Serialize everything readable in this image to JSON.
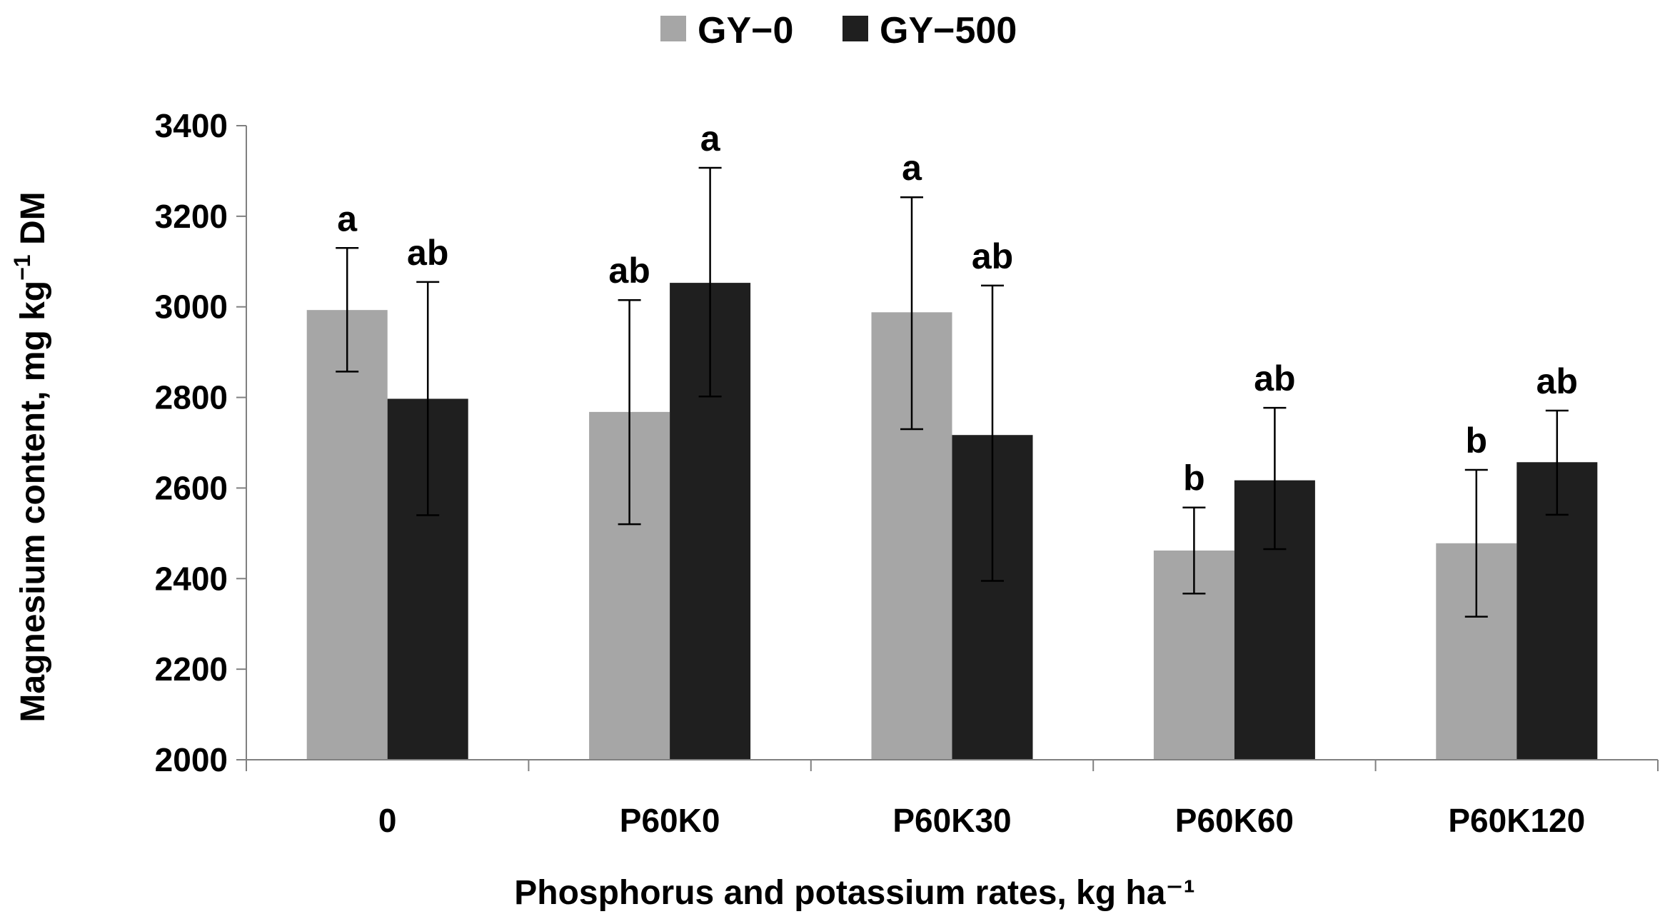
{
  "chart_data": {
    "type": "bar",
    "title": "",
    "xlabel": "Phosphorus and potassium rates, kg ha⁻¹",
    "ylabel_main": "Magnesium content, mg kg",
    "ylabel_sup": "−1",
    "ylabel_tail": " DM",
    "ylim": [
      2000,
      3400
    ],
    "yticks": [
      2000,
      2200,
      2400,
      2600,
      2800,
      3000,
      3200,
      3400
    ],
    "legend_position": "top-center",
    "grid": false,
    "categories": [
      "0",
      "P60K0",
      "P60K30",
      "P60K60",
      "P60K120"
    ],
    "series": [
      {
        "name": "GY−0",
        "color": "#a6a6a6",
        "values": [
          2993,
          2768,
          2988,
          2462,
          2478
        ],
        "error_low": [
          2857,
          2520,
          2730,
          2367,
          2316
        ],
        "error_high": [
          3130,
          3015,
          3242,
          2557,
          2640
        ],
        "labels": [
          "a",
          "ab",
          "a",
          "b",
          "b"
        ]
      },
      {
        "name": "GY−500",
        "color": "#1f1f1f",
        "values": [
          2797,
          3053,
          2717,
          2617,
          2657
        ],
        "error_low": [
          2540,
          2802,
          2395,
          2465,
          2541
        ],
        "error_high": [
          3055,
          3307,
          3047,
          2777,
          2771
        ],
        "labels": [
          "ab",
          "a",
          "ab",
          "ab",
          "ab"
        ]
      }
    ]
  }
}
